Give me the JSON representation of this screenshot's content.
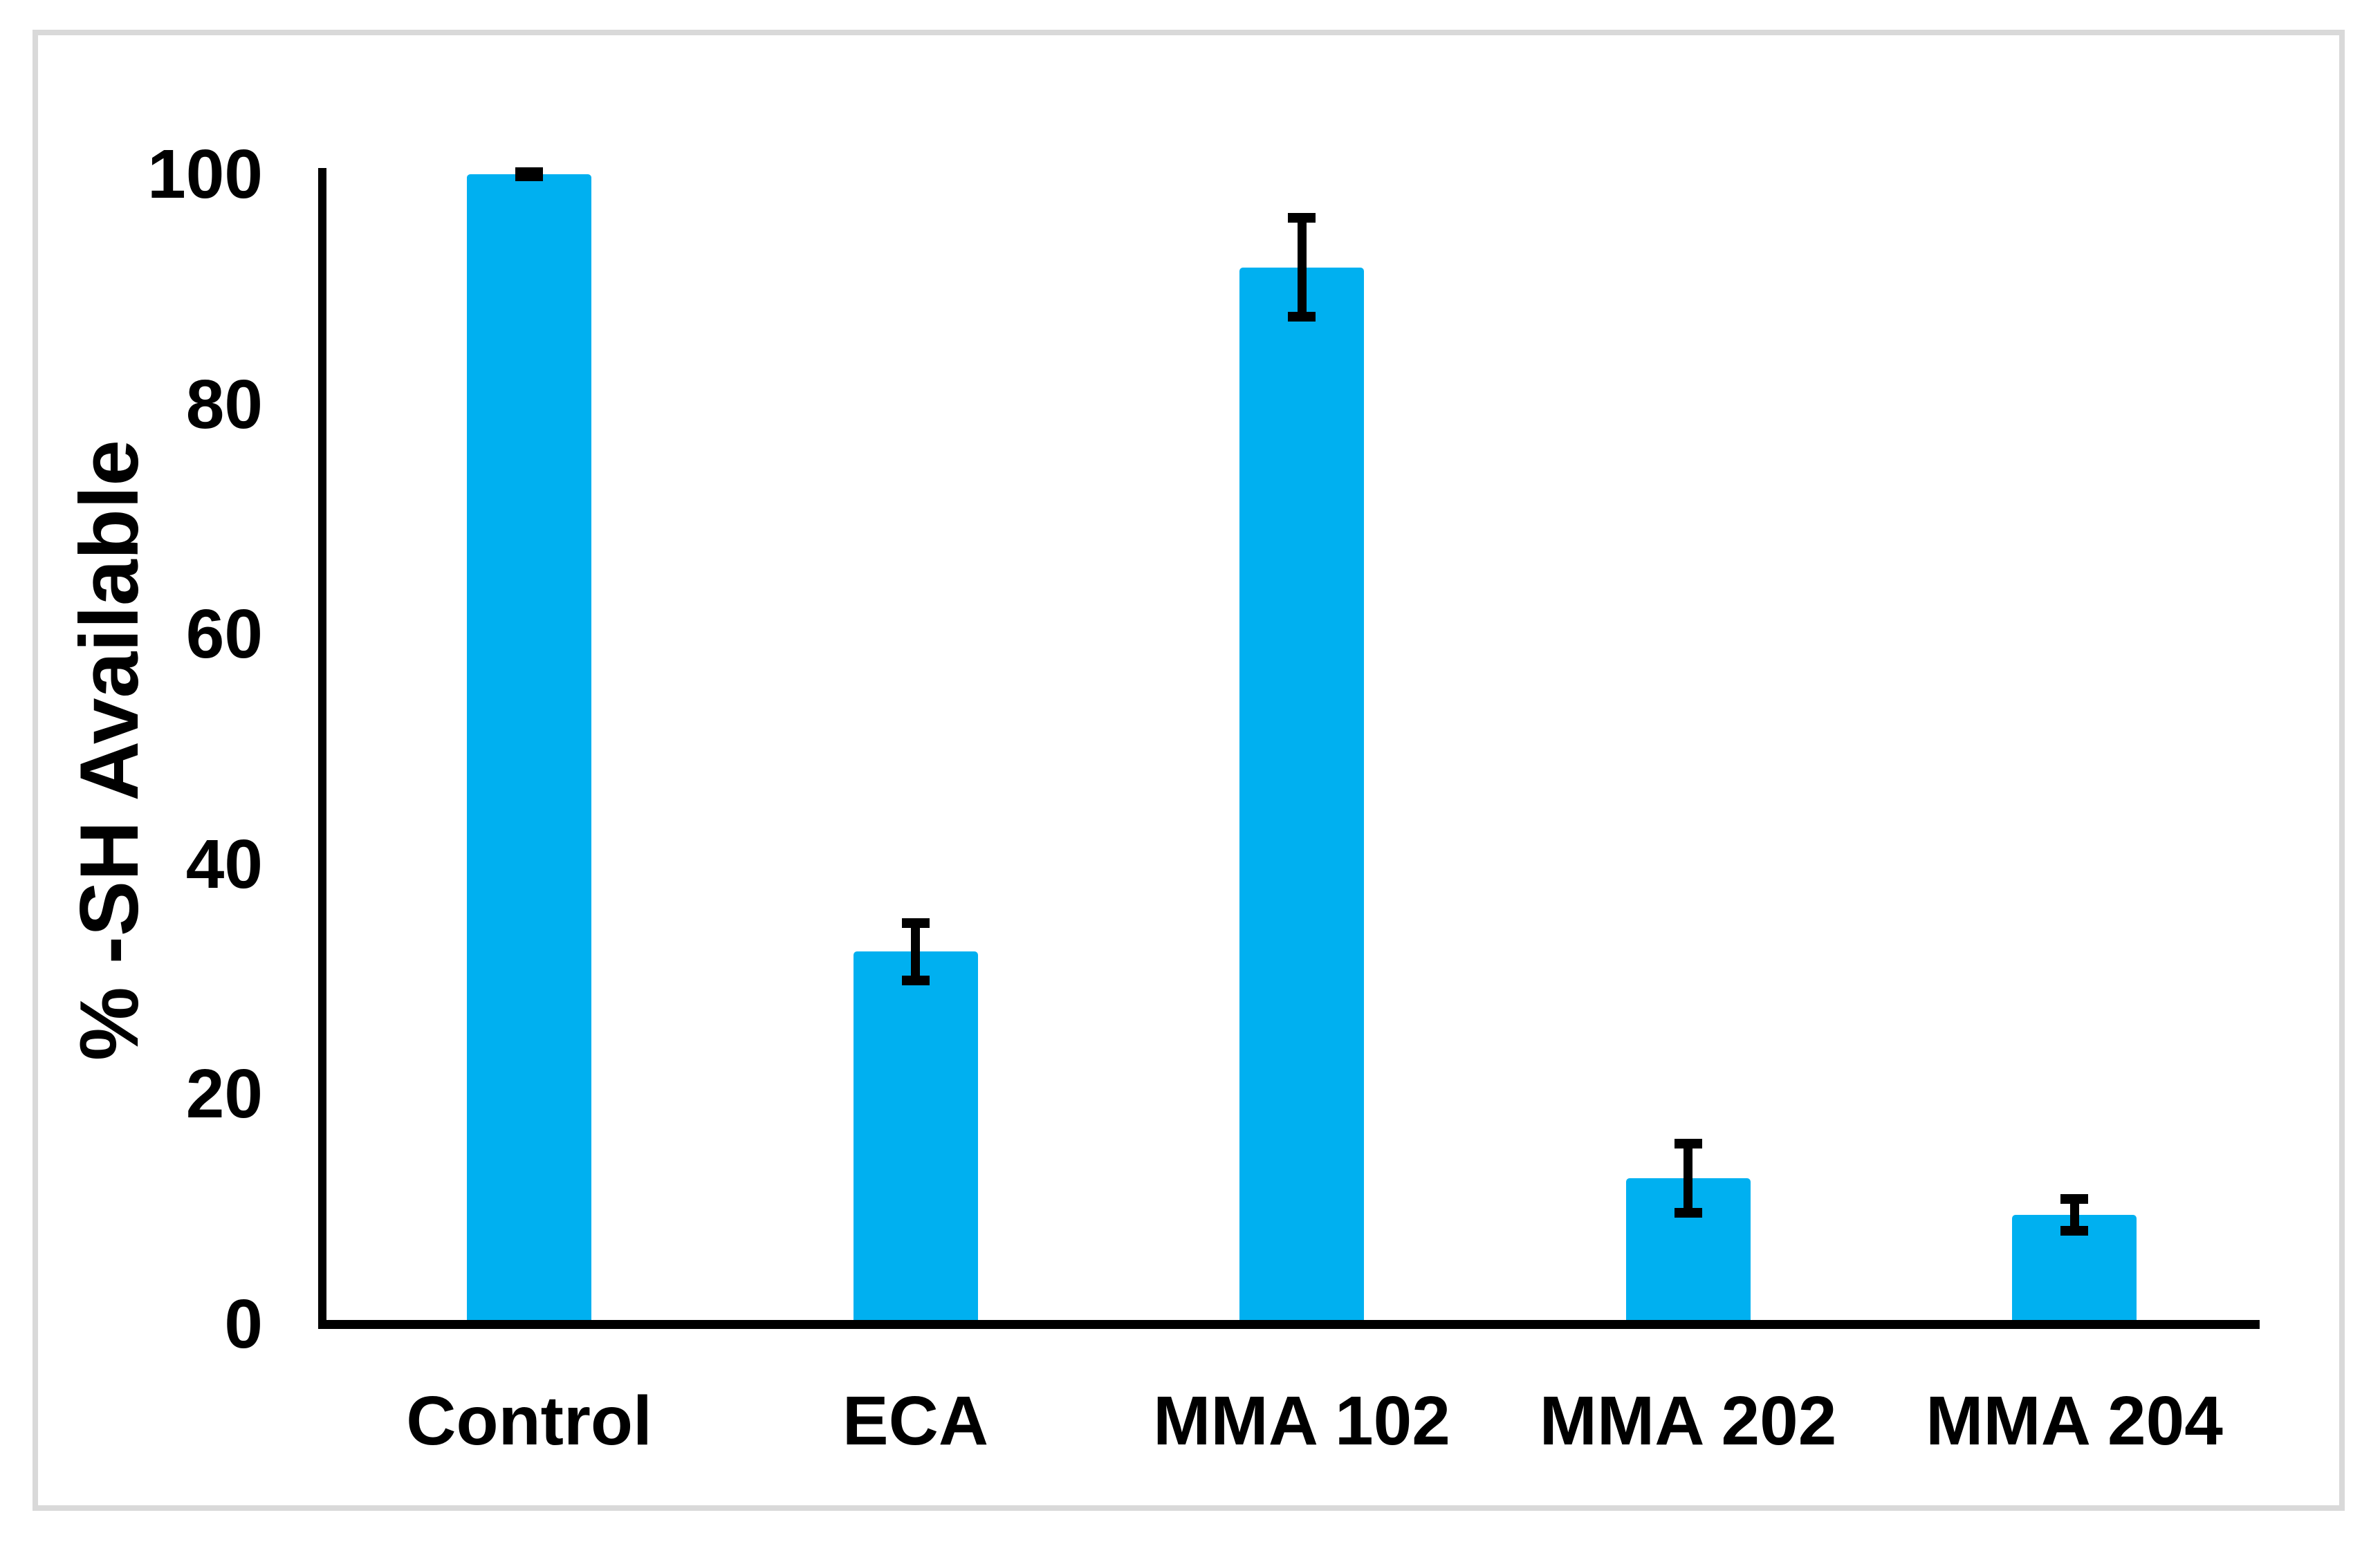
{
  "chart_data": {
    "type": "bar",
    "title": "",
    "xlabel": "",
    "ylabel": "% -SH Available",
    "categories": [
      "Control",
      "ECA",
      "MMA 102",
      "MMA 202",
      "MMA 204"
    ],
    "values": [
      100,
      32.4,
      91.9,
      12.7,
      9.5
    ],
    "error_bars": [
      0.2,
      2.5,
      4.3,
      3.0,
      1.4
    ],
    "ylim": [
      0,
      100
    ],
    "yticks": [
      0,
      20,
      40,
      60,
      80,
      100
    ],
    "grid": false,
    "legend": false,
    "bar_color": "#00B0F0",
    "axis_color": "#000000",
    "error_bar_color": "#000000",
    "frame_border_color": "#D9D9D9",
    "background_color": "#FFFFFF"
  }
}
